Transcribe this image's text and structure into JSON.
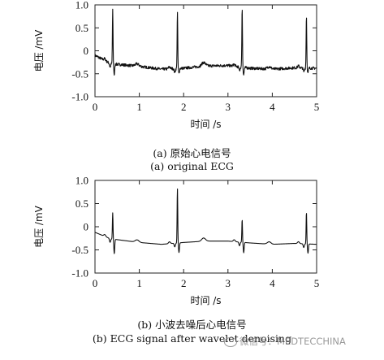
{
  "chart_data": [
    {
      "type": "line",
      "xlabel": "时间 /s",
      "ylabel": "电压 /mV",
      "xlim": [
        0,
        5
      ],
      "ylim": [
        -1.0,
        1.0
      ],
      "xticks": [
        "0",
        "1",
        "2",
        "3",
        "4",
        "5"
      ],
      "yticks": [
        "1.0",
        "0.5",
        "0",
        "-0.5",
        "-1.0"
      ],
      "grid": false,
      "caption_cn": "(a) 原始心电信号",
      "caption_en": "(a) original ECG",
      "noisy": true,
      "baseline": [
        [
          0,
          -0.1
        ],
        [
          0.35,
          -0.28
        ],
        [
          1.0,
          -0.34
        ],
        [
          1.5,
          -0.4
        ],
        [
          2.0,
          -0.38
        ],
        [
          2.5,
          -0.33
        ],
        [
          3.0,
          -0.32
        ],
        [
          3.5,
          -0.38
        ],
        [
          4.0,
          -0.4
        ],
        [
          4.5,
          -0.37
        ],
        [
          5.0,
          -0.38
        ]
      ],
      "r_peaks": [
        {
          "t": 0.4,
          "r": 0.88,
          "s": -0.52
        },
        {
          "t": 1.86,
          "r": 0.84,
          "s": -0.5
        },
        {
          "t": 3.32,
          "r": 0.94,
          "s": -0.52
        },
        {
          "t": 4.77,
          "r": 0.77,
          "s": -0.48
        }
      ],
      "t_waves": [
        {
          "t": 0.95,
          "h": 0.05
        },
        {
          "t": 2.45,
          "h": 0.08
        },
        {
          "t": 3.93,
          "h": 0.05
        }
      ]
    },
    {
      "type": "line",
      "xlabel": "时间 /s",
      "ylabel": "电压 /mV",
      "xlim": [
        0,
        5
      ],
      "ylim": [
        -1.0,
        1.0
      ],
      "xticks": [
        "0",
        "1",
        "2",
        "3",
        "4",
        "5"
      ],
      "yticks": [
        "1.0",
        "0.5",
        "0",
        "-0.5",
        "-1.0"
      ],
      "grid": false,
      "caption_cn": "(b) 小波去噪后心电信号",
      "caption_en": "(b) ECG signal after wavelet denoising",
      "noisy": false,
      "baseline": [
        [
          0,
          -0.12
        ],
        [
          0.35,
          -0.26
        ],
        [
          1.0,
          -0.34
        ],
        [
          1.5,
          -0.38
        ],
        [
          2.0,
          -0.34
        ],
        [
          2.5,
          -0.31
        ],
        [
          3.0,
          -0.31
        ],
        [
          3.5,
          -0.35
        ],
        [
          4.0,
          -0.38
        ],
        [
          4.5,
          -0.36
        ],
        [
          5.0,
          -0.38
        ]
      ],
      "r_peaks": [
        {
          "t": 0.4,
          "r": 0.3,
          "s": -0.58
        },
        {
          "t": 1.86,
          "r": 0.83,
          "s": -0.56
        },
        {
          "t": 3.32,
          "r": 0.16,
          "s": -0.56
        },
        {
          "t": 4.77,
          "r": 0.32,
          "s": -0.57
        }
      ],
      "t_waves": [
        {
          "t": 0.95,
          "h": 0.05
        },
        {
          "t": 2.45,
          "h": 0.07
        },
        {
          "t": 3.93,
          "h": 0.05
        }
      ]
    }
  ],
  "watermark": "微信号：MEDTECCHINA"
}
